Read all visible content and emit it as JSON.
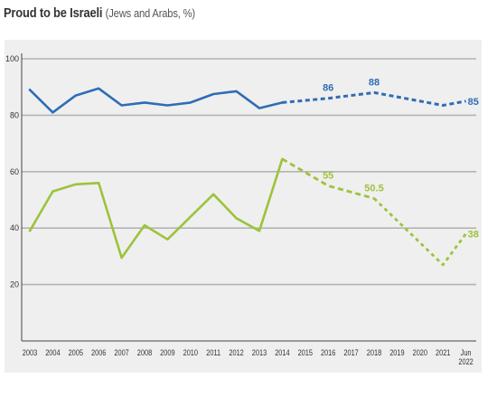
{
  "chart_data": {
    "type": "line",
    "title": "Proud to be Israeli",
    "subtitle": "(Jews and Arabs, %)",
    "xlabel": "",
    "ylabel": "",
    "ylim": [
      0,
      100
    ],
    "y_ticks": [
      20,
      40,
      60,
      80,
      100
    ],
    "grid": true,
    "legend": "none",
    "categories": [
      "2003",
      "2004",
      "2005",
      "2006",
      "2007",
      "2008",
      "2009",
      "2010",
      "2011",
      "2012",
      "2013",
      "2014",
      "2015",
      "2016",
      "2017",
      "2018",
      "2019",
      "2020",
      "2021",
      "Jun 2022"
    ],
    "x_tick_lines": [
      [
        "2003"
      ],
      [
        "2004"
      ],
      [
        "2005"
      ],
      [
        "2006"
      ],
      [
        "2007"
      ],
      [
        "2008"
      ],
      [
        "2009"
      ],
      [
        "2010"
      ],
      [
        "2011"
      ],
      [
        "2012"
      ],
      [
        "2013"
      ],
      [
        "2014"
      ],
      [
        "2015"
      ],
      [
        "2016"
      ],
      [
        "2017"
      ],
      [
        "2018"
      ],
      [
        "2019"
      ],
      [
        "2020"
      ],
      [
        "2021"
      ],
      [
        "Jun",
        "2022"
      ]
    ],
    "series": [
      {
        "color": "#2f6db5",
        "values": [
          89,
          81,
          87,
          89.5,
          83.5,
          84.5,
          83.5,
          84.5,
          87.5,
          88.5,
          82.5,
          84.5,
          null,
          86,
          null,
          88,
          null,
          null,
          83.5,
          85
        ],
        "solid_until_index": 11,
        "data_labels": [
          {
            "index": 13,
            "text": "86"
          },
          {
            "index": 15,
            "text": "88"
          },
          {
            "index": 19,
            "text": "85"
          }
        ]
      },
      {
        "color": "#9cc33b",
        "values": [
          39,
          53,
          55.5,
          56,
          29.5,
          41,
          36,
          44,
          52,
          43.5,
          39,
          64.5,
          null,
          55,
          null,
          50.5,
          null,
          null,
          27,
          38
        ],
        "solid_until_index": 11,
        "dashed_until_index": 15,
        "data_labels": [
          {
            "index": 13,
            "text": "55"
          },
          {
            "index": 15,
            "text": "50.5"
          },
          {
            "index": 19,
            "text": "38"
          }
        ]
      }
    ]
  }
}
